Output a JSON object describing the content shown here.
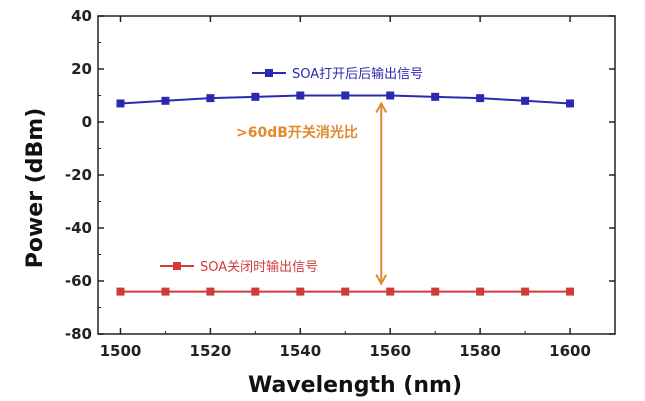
{
  "chart_data": {
    "type": "line",
    "xlabel": "Wavelength (nm)",
    "ylabel": "Power (dBm)",
    "xlim": [
      1495,
      1610
    ],
    "ylim": [
      -80,
      40
    ],
    "x_ticks": [
      1500,
      1520,
      1540,
      1560,
      1580,
      1600
    ],
    "y_ticks": [
      -80,
      -60,
      -40,
      -20,
      0,
      20,
      40
    ],
    "grid": false,
    "legend_placement": "inline-labels",
    "series": [
      {
        "name": "SOA打开后后输出信号",
        "color": "#2a2ab0",
        "x": [
          1500,
          1510,
          1520,
          1530,
          1540,
          1550,
          1560,
          1570,
          1580,
          1590,
          1600
        ],
        "values": [
          7,
          8,
          9,
          9.5,
          10,
          10,
          10,
          9.5,
          9,
          8,
          7
        ]
      },
      {
        "name": "SOA关闭时输出信号",
        "color": "#d23a3a",
        "x": [
          1500,
          1510,
          1520,
          1530,
          1540,
          1550,
          1560,
          1570,
          1580,
          1590,
          1600
        ],
        "values": [
          -64,
          -64,
          -64,
          -64,
          -64,
          -64,
          -64,
          -64,
          -64,
          -64,
          -64
        ]
      }
    ],
    "annotation": {
      "text": ">60dB开关消光比",
      "color": "#e08a2e",
      "x": 1558,
      "y_from": 10,
      "y_to": -64
    }
  }
}
